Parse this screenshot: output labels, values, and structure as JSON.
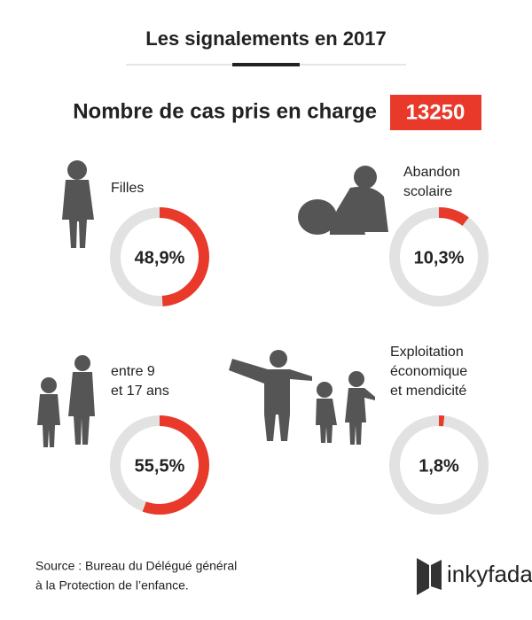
{
  "title": "Les signalements en 2017",
  "headline": {
    "label": "Nombre de cas pris en charge",
    "value": 13250
  },
  "chart_data": [
    {
      "type": "donut",
      "title": [
        "Filles"
      ],
      "values": [
        48.9
      ],
      "value_labels": [
        "48,9%"
      ],
      "color": "#e8392a",
      "track_color": "#e2e2e2"
    },
    {
      "type": "donut",
      "title": [
        "Abandon",
        "scolaire"
      ],
      "values": [
        10.3
      ],
      "value_labels": [
        "10,3%"
      ],
      "color": "#e8392a",
      "track_color": "#e2e2e2"
    },
    {
      "type": "donut",
      "title": [
        "entre 9",
        "et 17 ans"
      ],
      "values": [
        55.5
      ],
      "value_labels": [
        "55,5%"
      ],
      "color": "#e8392a",
      "track_color": "#e2e2e2"
    },
    {
      "type": "donut",
      "title": [
        "Exploitation",
        "économique",
        "et mendicité"
      ],
      "values": [
        1.8
      ],
      "value_labels": [
        "1,8%"
      ],
      "color": "#e8392a",
      "track_color": "#e2e2e2"
    }
  ],
  "source": [
    "Source : Bureau du Délégué général",
    "à la Protection de l’enfance."
  ],
  "logo": "inkyfada"
}
